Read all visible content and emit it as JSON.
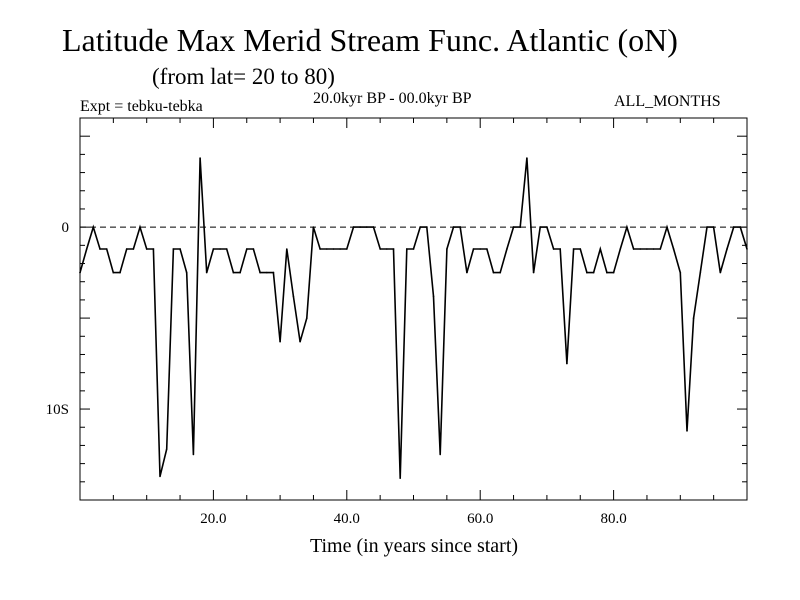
{
  "title": "Latitude Max Merid Stream Func. Atlantic (oN)",
  "subtitle": "(from lat= 20 to 80)",
  "experiment_label": "Expt = tebku-tebka",
  "period_label": "20.0kyr BP - 00.0kyr BP",
  "months_label": "ALL_MONTHS",
  "chart_data": {
    "type": "line",
    "title": "Latitude Max Merid Stream Func. Atlantic (oN)",
    "xlabel": "Time (in years since start)",
    "ylabel": "",
    "xlim": [
      0,
      100
    ],
    "ylim": [
      -15,
      6
    ],
    "x_ticks": [
      20,
      40,
      60,
      80
    ],
    "x_tick_labels": [
      "20.0",
      "40.0",
      "60.0",
      "80.0"
    ],
    "y_ticks": [
      0,
      -10
    ],
    "y_tick_labels": [
      "0",
      "10S"
    ],
    "zero_line": "dashed",
    "series": [
      {
        "name": "tebku-tebka",
        "x": [
          0,
          1,
          2,
          3,
          4,
          5,
          6,
          7,
          8,
          9,
          10,
          11,
          12,
          13,
          14,
          15,
          16,
          17,
          18,
          19,
          20,
          21,
          22,
          23,
          24,
          25,
          26,
          27,
          28,
          29,
          30,
          31,
          32,
          33,
          34,
          35,
          36,
          37,
          38,
          39,
          40,
          41,
          42,
          43,
          44,
          45,
          46,
          47,
          48,
          49,
          50,
          51,
          52,
          53,
          54,
          55,
          56,
          57,
          58,
          59,
          60,
          61,
          62,
          63,
          64,
          65,
          66,
          67,
          68,
          69,
          70,
          71,
          72,
          73,
          74,
          75,
          76,
          77,
          78,
          79,
          80,
          81,
          82,
          83,
          84,
          85,
          86,
          87,
          88,
          89,
          90,
          91,
          92,
          93,
          94,
          95,
          96,
          97,
          98,
          99,
          100
        ],
        "values": [
          -2.5,
          -1.2,
          0,
          -1.2,
          -1.2,
          -2.5,
          -2.5,
          -1.2,
          -1.2,
          0,
          -1.2,
          -1.2,
          -13.7,
          -12.2,
          -1.2,
          -1.2,
          -2.5,
          -12.5,
          3.8,
          -2.5,
          -1.2,
          -1.2,
          -1.2,
          -2.5,
          -2.5,
          -1.2,
          -1.2,
          -2.5,
          -2.5,
          -2.5,
          -6.3,
          -1.2,
          -3.8,
          -6.3,
          -5,
          0,
          -1.2,
          -1.2,
          -1.2,
          -1.2,
          -1.2,
          0,
          0,
          0,
          0,
          -1.2,
          -1.2,
          -1.2,
          -13.8,
          -1.2,
          -1.2,
          0,
          0,
          -3.8,
          -12.5,
          -1.2,
          0,
          0,
          -2.5,
          -1.2,
          -1.2,
          -1.2,
          -2.5,
          -2.5,
          -1.2,
          0,
          0,
          3.8,
          -2.5,
          0,
          0,
          -1.2,
          -1.2,
          -7.5,
          -1.2,
          -1.2,
          -2.5,
          -2.5,
          -1.2,
          -2.5,
          -2.5,
          -1.2,
          0,
          -1.2,
          -1.2,
          -1.2,
          -1.2,
          -1.2,
          0,
          -1.2,
          -2.5,
          -11.2,
          -5,
          -2.5,
          0,
          0,
          -2.5,
          -1.2,
          0,
          0,
          -1.2
        ]
      }
    ]
  }
}
